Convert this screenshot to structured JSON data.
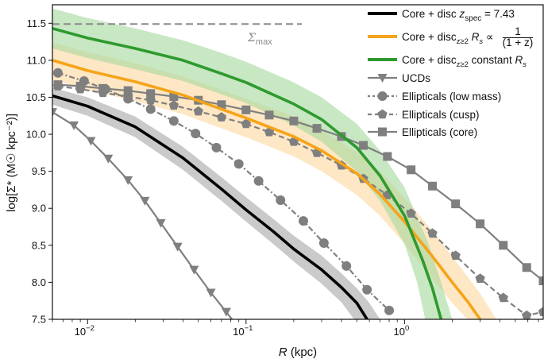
{
  "chart_data": {
    "type": "line",
    "xscale": "log",
    "xlim": [
      0.006,
      7.5
    ],
    "ylim": [
      7.5,
      11.75
    ],
    "xlabel": "R (kpc)",
    "xlabel_var": "R",
    "xlabel_unit": " (kpc)",
    "ylabel": "log[Σ* (M☉ kpc⁻²)]",
    "y_ticks": [
      "7.5",
      "8.0",
      "8.5",
      "9.0",
      "9.5",
      "10.0",
      "10.5",
      "11.0",
      "11.5"
    ],
    "x_ticks": [
      {
        "value": 0.01,
        "base": "10",
        "exp": "−2"
      },
      {
        "value": 0.1,
        "base": "10",
        "exp": "−1"
      },
      {
        "value": 1,
        "base": "10",
        "exp": "0"
      }
    ],
    "annotation": {
      "text": "Σmax",
      "symbol": "Σ",
      "sub": "max",
      "y": 11.49
    },
    "legend_placement": "top-right",
    "series": [
      {
        "name": "Core + disc zspec = 7.43",
        "legend_label": {
          "pre": "Core + disc ",
          "var": "z",
          "sub": "spec",
          "post": " = 7.43"
        },
        "color": "#000000",
        "band_color": "#a9a9a9",
        "points": [
          [
            0.006,
            10.52
          ],
          [
            0.01,
            10.38
          ],
          [
            0.02,
            10.1
          ],
          [
            0.04,
            9.68
          ],
          [
            0.07,
            9.26
          ],
          [
            0.1,
            8.98
          ],
          [
            0.15,
            8.68
          ],
          [
            0.2,
            8.45
          ],
          [
            0.3,
            8.17
          ],
          [
            0.4,
            7.93
          ],
          [
            0.5,
            7.72
          ],
          [
            0.58,
            7.5
          ]
        ],
        "band_lower": [
          [
            0.006,
            10.4
          ],
          [
            0.01,
            10.25
          ],
          [
            0.02,
            9.96
          ],
          [
            0.04,
            9.52
          ],
          [
            0.07,
            9.1
          ],
          [
            0.1,
            8.82
          ],
          [
            0.15,
            8.51
          ],
          [
            0.2,
            8.28
          ],
          [
            0.3,
            7.98
          ],
          [
            0.4,
            7.73
          ],
          [
            0.48,
            7.5
          ]
        ],
        "band_upper": [
          [
            0.006,
            10.63
          ],
          [
            0.01,
            10.5
          ],
          [
            0.02,
            10.24
          ],
          [
            0.04,
            9.83
          ],
          [
            0.07,
            9.42
          ],
          [
            0.1,
            9.15
          ],
          [
            0.15,
            8.85
          ],
          [
            0.2,
            8.63
          ],
          [
            0.3,
            8.36
          ],
          [
            0.4,
            8.12
          ],
          [
            0.5,
            7.92
          ],
          [
            0.6,
            7.72
          ],
          [
            0.7,
            7.5
          ]
        ]
      },
      {
        "name": "Core + disc z≥2 Rs ∝ 1/(1 + z)",
        "legend_label": {
          "pre": "Core + disc",
          "sub": "z≥2",
          "mid": "R",
          "mid_sub": "s",
          "rel": "∝",
          "num": "1",
          "den": "(1 + z)"
        },
        "color": "#f5a41a",
        "band_color": "#fdd9a2",
        "points": [
          [
            0.006,
            11.0
          ],
          [
            0.01,
            10.86
          ],
          [
            0.02,
            10.71
          ],
          [
            0.04,
            10.53
          ],
          [
            0.07,
            10.34
          ],
          [
            0.1,
            10.22
          ],
          [
            0.2,
            9.97
          ],
          [
            0.3,
            9.78
          ],
          [
            0.5,
            9.47
          ],
          [
            0.7,
            9.19
          ],
          [
            1.0,
            8.82
          ],
          [
            1.5,
            8.35
          ],
          [
            2.0,
            8.0
          ],
          [
            2.5,
            7.74
          ],
          [
            3.0,
            7.5
          ]
        ],
        "band_lower": [
          [
            0.006,
            10.74
          ],
          [
            0.01,
            10.6
          ],
          [
            0.02,
            10.45
          ],
          [
            0.04,
            10.27
          ],
          [
            0.07,
            10.08
          ],
          [
            0.1,
            9.96
          ],
          [
            0.2,
            9.7
          ],
          [
            0.3,
            9.5
          ],
          [
            0.5,
            9.18
          ],
          [
            0.7,
            8.9
          ],
          [
            1.0,
            8.52
          ],
          [
            1.5,
            8.05
          ],
          [
            2.0,
            7.72
          ],
          [
            2.5,
            7.5
          ]
        ],
        "band_upper": [
          [
            0.006,
            11.24
          ],
          [
            0.01,
            11.11
          ],
          [
            0.02,
            10.96
          ],
          [
            0.04,
            10.78
          ],
          [
            0.07,
            10.6
          ],
          [
            0.1,
            10.48
          ],
          [
            0.2,
            10.24
          ],
          [
            0.3,
            10.05
          ],
          [
            0.5,
            9.76
          ],
          [
            0.7,
            9.5
          ],
          [
            1.0,
            9.14
          ],
          [
            1.5,
            8.7
          ],
          [
            2.0,
            8.35
          ],
          [
            3.0,
            7.85
          ],
          [
            3.8,
            7.5
          ]
        ]
      },
      {
        "name": "Core + disc z≥2 constant Rs",
        "legend_label": {
          "pre": "Core + disc",
          "sub": "z≥2",
          "post": " constant ",
          "var": "R",
          "var_sub": "s"
        },
        "color": "#2e9a2e",
        "band_color": "#a6d89e",
        "points": [
          [
            0.006,
            11.43
          ],
          [
            0.01,
            11.3
          ],
          [
            0.02,
            11.16
          ],
          [
            0.04,
            11.0
          ],
          [
            0.07,
            10.82
          ],
          [
            0.1,
            10.7
          ],
          [
            0.2,
            10.41
          ],
          [
            0.3,
            10.2
          ],
          [
            0.5,
            9.82
          ],
          [
            0.7,
            9.44
          ],
          [
            1.0,
            8.9
          ],
          [
            1.3,
            8.3
          ],
          [
            1.5,
            7.92
          ],
          [
            1.7,
            7.5
          ]
        ],
        "band_lower": [
          [
            0.006,
            11.16
          ],
          [
            0.01,
            11.03
          ],
          [
            0.02,
            10.88
          ],
          [
            0.04,
            10.72
          ],
          [
            0.07,
            10.54
          ],
          [
            0.1,
            10.42
          ],
          [
            0.2,
            10.12
          ],
          [
            0.3,
            9.9
          ],
          [
            0.5,
            9.5
          ],
          [
            0.7,
            9.1
          ],
          [
            1.0,
            8.52
          ],
          [
            1.2,
            8.0
          ],
          [
            1.35,
            7.5
          ]
        ],
        "band_upper": [
          [
            0.006,
            11.7
          ],
          [
            0.01,
            11.57
          ],
          [
            0.02,
            11.43
          ],
          [
            0.04,
            11.27
          ],
          [
            0.07,
            11.1
          ],
          [
            0.1,
            10.98
          ],
          [
            0.2,
            10.7
          ],
          [
            0.3,
            10.5
          ],
          [
            0.5,
            10.14
          ],
          [
            0.7,
            9.78
          ],
          [
            1.0,
            9.28
          ],
          [
            1.4,
            8.55
          ],
          [
            1.7,
            8.0
          ],
          [
            2.0,
            7.5
          ]
        ]
      },
      {
        "name": "UCDs",
        "color": "#7f7f7f",
        "marker": "triangle-down",
        "dash": "solid",
        "points": [
          [
            0.006,
            10.3
          ],
          [
            0.0082,
            10.12
          ],
          [
            0.0105,
            9.91
          ],
          [
            0.0135,
            9.67
          ],
          [
            0.018,
            9.38
          ],
          [
            0.023,
            9.1
          ],
          [
            0.029,
            8.8
          ],
          [
            0.037,
            8.48
          ],
          [
            0.047,
            8.17
          ],
          [
            0.06,
            7.86
          ],
          [
            0.075,
            7.6
          ],
          [
            0.09,
            7.38
          ]
        ]
      },
      {
        "name": "Ellipticals (low mass)",
        "color": "#7f7f7f",
        "marker": "circle",
        "dash": "dashdot",
        "points": [
          [
            0.0065,
            10.83
          ],
          [
            0.0095,
            10.72
          ],
          [
            0.013,
            10.61
          ],
          [
            0.018,
            10.48
          ],
          [
            0.025,
            10.34
          ],
          [
            0.035,
            10.18
          ],
          [
            0.048,
            10.01
          ],
          [
            0.065,
            9.82
          ],
          [
            0.09,
            9.6
          ],
          [
            0.12,
            9.37
          ],
          [
            0.165,
            9.11
          ],
          [
            0.23,
            8.83
          ],
          [
            0.31,
            8.53
          ],
          [
            0.43,
            8.22
          ],
          [
            0.58,
            7.9
          ],
          [
            0.8,
            7.62
          ]
        ]
      },
      {
        "name": "Ellipticals (cusp)",
        "color": "#7f7f7f",
        "marker": "pentagon",
        "dash": "dashed",
        "points": [
          [
            0.0065,
            10.65
          ],
          [
            0.009,
            10.61
          ],
          [
            0.0125,
            10.56
          ],
          [
            0.018,
            10.51
          ],
          [
            0.025,
            10.46
          ],
          [
            0.035,
            10.39
          ],
          [
            0.05,
            10.31
          ],
          [
            0.07,
            10.23
          ],
          [
            0.1,
            10.14
          ],
          [
            0.14,
            10.03
          ],
          [
            0.2,
            9.9
          ],
          [
            0.28,
            9.75
          ],
          [
            0.4,
            9.58
          ],
          [
            0.55,
            9.4
          ],
          [
            0.78,
            9.18
          ],
          [
            1.1,
            8.93
          ],
          [
            1.5,
            8.66
          ],
          [
            2.1,
            8.36
          ],
          [
            3.0,
            8.05
          ],
          [
            4.2,
            7.79
          ],
          [
            5.9,
            7.55
          ],
          [
            7.5,
            7.6
          ]
        ]
      },
      {
        "name": "Ellipticals (core)",
        "color": "#7f7f7f",
        "marker": "square",
        "dash": "solid",
        "points": [
          [
            0.0065,
            10.67
          ],
          [
            0.009,
            10.65
          ],
          [
            0.0125,
            10.62
          ],
          [
            0.018,
            10.59
          ],
          [
            0.025,
            10.55
          ],
          [
            0.035,
            10.51
          ],
          [
            0.05,
            10.46
          ],
          [
            0.07,
            10.4
          ],
          [
            0.1,
            10.33
          ],
          [
            0.14,
            10.26
          ],
          [
            0.2,
            10.18
          ],
          [
            0.28,
            10.08
          ],
          [
            0.4,
            9.97
          ],
          [
            0.55,
            9.85
          ],
          [
            0.78,
            9.7
          ],
          [
            1.1,
            9.52
          ],
          [
            1.5,
            9.3
          ],
          [
            2.1,
            9.06
          ],
          [
            3.0,
            8.79
          ],
          [
            4.2,
            8.5
          ],
          [
            5.9,
            8.2
          ],
          [
            7.5,
            8.02
          ]
        ]
      }
    ]
  }
}
